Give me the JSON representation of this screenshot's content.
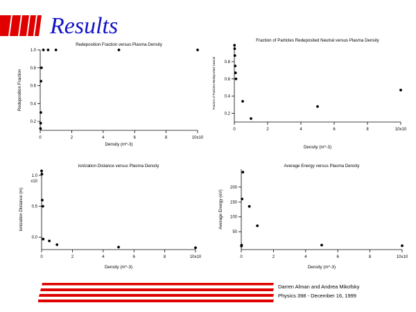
{
  "slide": {
    "title": "Results",
    "accent_color": "#e00000",
    "title_color": "#1414c8",
    "footer": {
      "authors": "Darren Alman and Andrea Mikofsky",
      "course": "Physics 398 - December 16, 1999"
    }
  },
  "chart_data": [
    {
      "type": "scatter",
      "title": "Redeposition Fraction versus Plasma Density",
      "xlabel": "Density (m^-3)",
      "ylabel": "Redeposition Fraction",
      "xlim": [
        0,
        10
      ],
      "ylim": [
        0.1,
        1.0
      ],
      "x_multiplier_label": "10x10",
      "x_ticks": [
        0,
        2,
        4,
        6,
        8,
        10
      ],
      "x_tick_labels": [
        "0",
        "2",
        "4",
        "6",
        "8",
        "10x10"
      ],
      "y_ticks": [
        0.2,
        0.4,
        0.6,
        0.8,
        1.0
      ],
      "y_tick_labels": [
        "0.2",
        "0.4",
        "0.6",
        "0.8",
        "1.0"
      ],
      "points": [
        [
          0.02,
          0.12
        ],
        [
          0.03,
          0.18
        ],
        [
          0.04,
          0.3
        ],
        [
          0.05,
          0.65
        ],
        [
          0.08,
          0.8
        ],
        [
          0.2,
          1.0
        ],
        [
          0.5,
          1.0
        ],
        [
          1.0,
          1.0
        ],
        [
          5.0,
          1.0
        ],
        [
          10.0,
          1.0
        ]
      ]
    },
    {
      "type": "scatter",
      "title": "Fraction of Particles Redeposited Neutral versus Plasma Density",
      "xlabel": "Density (m^-3)",
      "ylabel": "Fraction of Particles Redeposited Neutral",
      "xlim": [
        0,
        10
      ],
      "ylim": [
        0.1,
        1.0
      ],
      "x_multiplier_label": "10x10",
      "x_ticks": [
        0,
        2,
        4,
        6,
        8,
        10
      ],
      "x_tick_labels": [
        "0",
        "2",
        "4",
        "6",
        "8",
        "10x10"
      ],
      "y_ticks": [
        0.2,
        0.4,
        0.6,
        0.8
      ],
      "y_tick_labels": [
        "0.2",
        "0.4",
        "0.6",
        "0.8"
      ],
      "points": [
        [
          0.01,
          0.99
        ],
        [
          0.02,
          0.95
        ],
        [
          0.03,
          0.87
        ],
        [
          0.05,
          0.75
        ],
        [
          0.07,
          0.67
        ],
        [
          0.1,
          0.6
        ],
        [
          0.5,
          0.34
        ],
        [
          1.0,
          0.14
        ],
        [
          5.0,
          0.28
        ],
        [
          10.0,
          0.47
        ]
      ]
    },
    {
      "type": "scatter",
      "title": "Ionization Distance versus Plasma Density",
      "xlabel": "Density (m^-3)",
      "ylabel": "Ionization Distance (m)",
      "xlim": [
        0,
        10
      ],
      "ylim": [
        -0.2,
        1.1
      ],
      "x_multiplier_label": "10x10",
      "y_multiplier_label": "x10",
      "x_ticks": [
        0,
        2,
        4,
        6,
        8,
        10
      ],
      "x_tick_labels": [
        "0",
        "2",
        "4",
        "6",
        "8",
        "10x10"
      ],
      "y_ticks": [
        0.0,
        0.5,
        1.0
      ],
      "y_tick_labels": [
        "0.0",
        "0.5",
        "1.0"
      ],
      "points": [
        [
          0.0,
          1.07
        ],
        [
          0.02,
          1.02
        ],
        [
          0.04,
          0.6
        ],
        [
          0.08,
          0.5
        ],
        [
          0.1,
          -0.03
        ],
        [
          0.5,
          -0.06
        ],
        [
          1.0,
          -0.12
        ],
        [
          5.0,
          -0.16
        ],
        [
          10.0,
          -0.17
        ]
      ]
    },
    {
      "type": "scatter",
      "title": "Average Energy versus Plasma Density",
      "xlabel": "Density (m^-3)",
      "ylabel": "Average Energy (eV)",
      "xlim": [
        0,
        10
      ],
      "ylim": [
        -10,
        260
      ],
      "x_multiplier_label": "10x10",
      "x_ticks": [
        0,
        2,
        4,
        6,
        8,
        10
      ],
      "x_tick_labels": [
        "0",
        "2",
        "4",
        "6",
        "8",
        "10x10"
      ],
      "y_ticks": [
        50,
        100,
        150,
        200
      ],
      "y_tick_labels": [
        "50",
        "100",
        "150",
        "200"
      ],
      "points": [
        [
          0.01,
          2
        ],
        [
          0.02,
          5
        ],
        [
          0.05,
          160
        ],
        [
          0.1,
          250
        ],
        [
          0.5,
          135
        ],
        [
          1.0,
          70
        ],
        [
          5.0,
          5
        ],
        [
          10.0,
          3
        ]
      ]
    }
  ]
}
